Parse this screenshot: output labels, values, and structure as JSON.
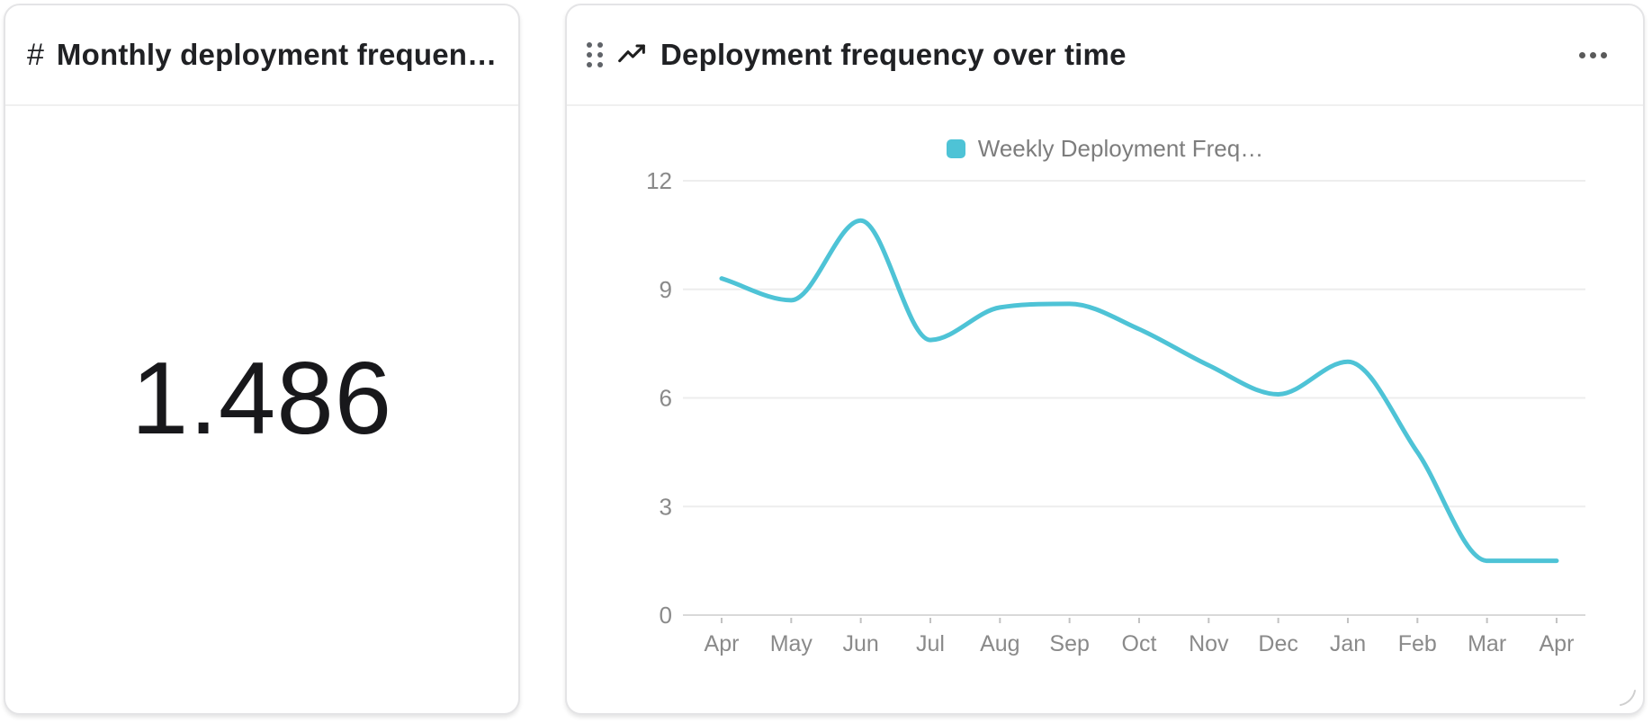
{
  "metric_card": {
    "icon_glyph": "#",
    "title": "Monthly deployment frequen…",
    "value": "1.486"
  },
  "chart_card": {
    "title": "Deployment frequency over time"
  },
  "icons": {
    "metric": "hash-icon",
    "chart_type": "trend-line-icon",
    "drag": "drag-handle-icon",
    "more": "more-options-icon",
    "resize": "resize-corner-icon"
  },
  "chart_data": {
    "type": "line",
    "title": "Deployment frequency over time",
    "categories": [
      "Apr",
      "May",
      "Jun",
      "Jul",
      "Aug",
      "Sep",
      "Oct",
      "Nov",
      "Dec",
      "Jan",
      "Feb",
      "Mar",
      "Apr"
    ],
    "series": [
      {
        "name": "Weekly Deployment Freq…",
        "color": "#4EC3D6",
        "values": [
          9.3,
          8.7,
          10.9,
          7.6,
          8.5,
          8.6,
          7.9,
          6.9,
          6.1,
          7.0,
          4.5,
          1.5,
          1.5
        ]
      }
    ],
    "ylim": [
      0,
      12
    ],
    "yticks": [
      0,
      3,
      6,
      9,
      12
    ],
    "grid": true,
    "legend_position": "top",
    "interpolation": "monotone"
  },
  "colors": {
    "line": "#4EC3D6",
    "gridline": "#ededed",
    "zero_line": "#d9d9d9",
    "tick_mark": "#c2c2c2",
    "axis_text": "#8a8a8a",
    "title_text": "#202124",
    "legend_text": "#7d7d7d"
  }
}
